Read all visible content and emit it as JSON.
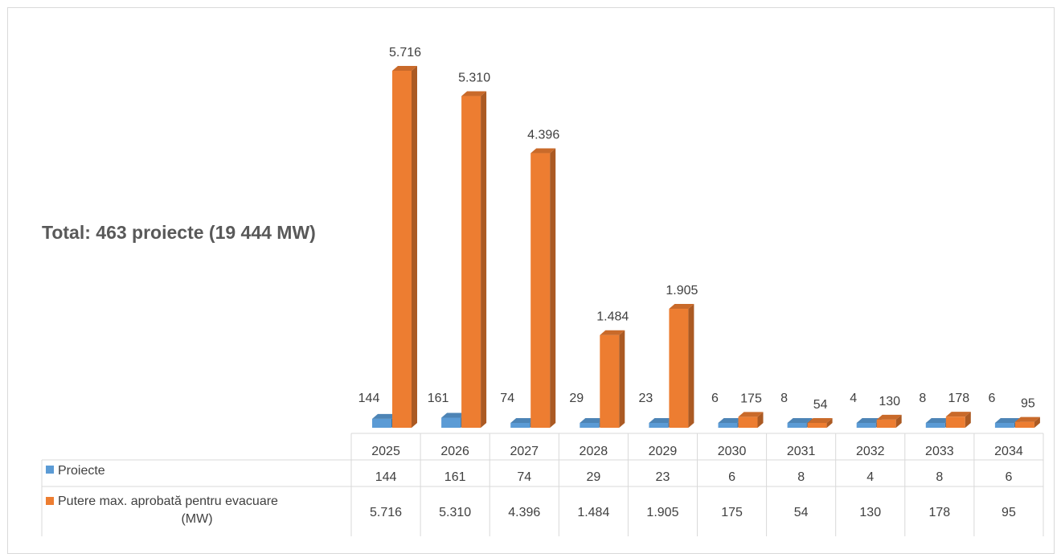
{
  "annotation": "Total: 463 proiecte (19 444 MW)",
  "colors": {
    "series_1": "#5b9bd5",
    "series_2": "#ed7d31",
    "text": "#404040",
    "title": "#595959",
    "grid": "#d9d9d9"
  },
  "chart_data": {
    "type": "bar",
    "style": "3d-clustered-column with data table",
    "categories": [
      "2025",
      "2026",
      "2027",
      "2028",
      "2029",
      "2030",
      "2031",
      "2032",
      "2033",
      "2034"
    ],
    "series": [
      {
        "name": "Proiecte",
        "values": [
          144,
          161,
          74,
          29,
          23,
          6,
          8,
          4,
          8,
          6
        ],
        "labels": [
          "144",
          "161",
          "74",
          "29",
          "23",
          "6",
          "8",
          "4",
          "8",
          "6"
        ]
      },
      {
        "name": "Putere max. aprobată pentru evacuare (MW)",
        "values": [
          5716,
          5310,
          4396,
          1484,
          1905,
          175,
          54,
          130,
          178,
          95
        ],
        "labels": [
          "5.716",
          "5.310",
          "4.396",
          "1.484",
          "1.905",
          "175",
          "54",
          "130",
          "178",
          "95"
        ]
      }
    ],
    "ylim": [
      0,
      6000
    ],
    "gridlines": false,
    "legend": "data-table"
  }
}
